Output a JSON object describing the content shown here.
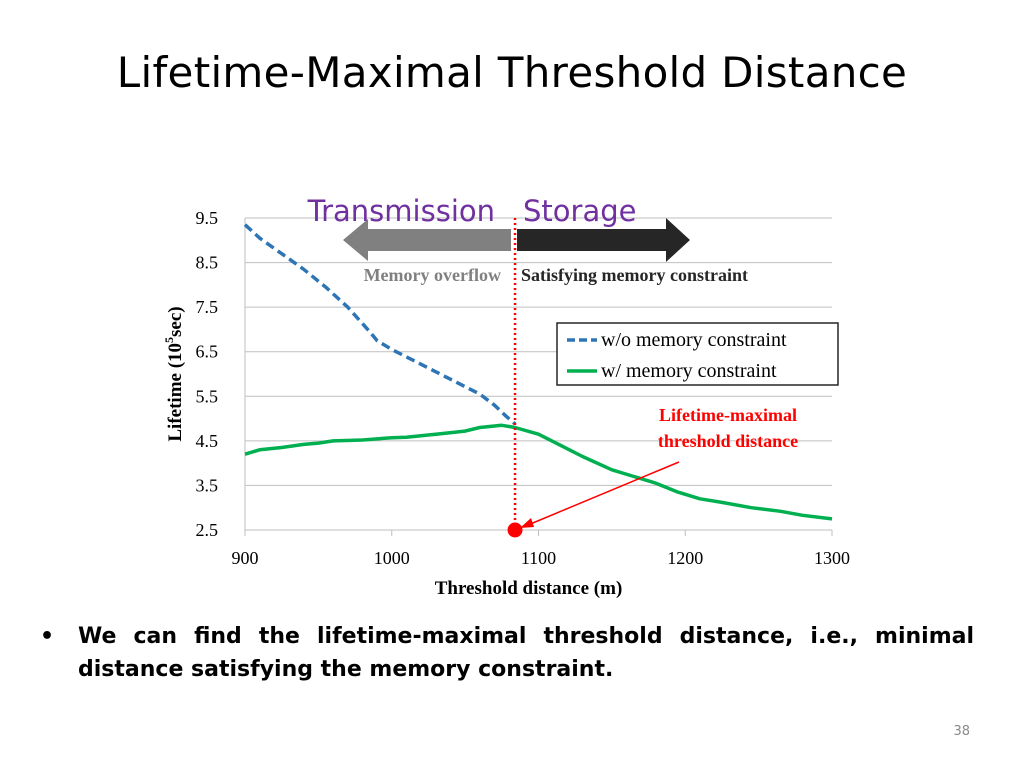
{
  "slide": {
    "title": "Lifetime-Maximal Threshold Distance",
    "bullet_marker": "•",
    "bullet_text": "We can find the lifetime-maximal threshold distance, i.e., minimal distance satisfying the memory constraint.",
    "page_number": "38"
  },
  "chart_data": {
    "type": "line",
    "xlabel": "Threshold distance (m)",
    "ylabel_main": "Lifetime (10",
    "ylabel_sup": "5",
    "ylabel_tail": "sec)",
    "xlim": [
      900,
      1300
    ],
    "ylim": [
      2.5,
      9.5
    ],
    "x_ticks": [
      "900",
      "1000",
      "1100",
      "1200",
      "1300"
    ],
    "y_ticks": [
      "9.5",
      "8.5",
      "7.5",
      "6.5",
      "5.5",
      "4.5",
      "3.5",
      "2.5"
    ],
    "grid": true,
    "legend_position": "right, middle",
    "series": [
      {
        "name": "w/o memory constraint",
        "color": "#2E75B6",
        "style": "dashed",
        "points": [
          [
            900,
            9.35
          ],
          [
            910,
            9.05
          ],
          [
            925,
            8.7
          ],
          [
            940,
            8.35
          ],
          [
            955,
            7.95
          ],
          [
            970,
            7.5
          ],
          [
            985,
            6.95
          ],
          [
            990,
            6.75
          ],
          [
            1000,
            6.55
          ],
          [
            1015,
            6.3
          ],
          [
            1030,
            6.05
          ],
          [
            1045,
            5.8
          ],
          [
            1060,
            5.55
          ],
          [
            1070,
            5.3
          ],
          [
            1078,
            5.05
          ],
          [
            1084,
            4.88
          ]
        ]
      },
      {
        "name": "w/ memory constraint",
        "color": "#00B050",
        "style": "solid",
        "points": [
          [
            900,
            4.2
          ],
          [
            910,
            4.3
          ],
          [
            925,
            4.35
          ],
          [
            940,
            4.42
          ],
          [
            950,
            4.45
          ],
          [
            960,
            4.5
          ],
          [
            980,
            4.52
          ],
          [
            1000,
            4.57
          ],
          [
            1010,
            4.58
          ],
          [
            1030,
            4.65
          ],
          [
            1050,
            4.72
          ],
          [
            1060,
            4.8
          ],
          [
            1075,
            4.85
          ],
          [
            1084,
            4.8
          ],
          [
            1100,
            4.65
          ],
          [
            1115,
            4.4
          ],
          [
            1130,
            4.15
          ],
          [
            1150,
            3.85
          ],
          [
            1165,
            3.7
          ],
          [
            1180,
            3.55
          ],
          [
            1195,
            3.35
          ],
          [
            1210,
            3.2
          ],
          [
            1225,
            3.12
          ],
          [
            1245,
            3.0
          ],
          [
            1265,
            2.92
          ],
          [
            1280,
            2.83
          ],
          [
            1300,
            2.75
          ]
        ]
      }
    ],
    "threshold": {
      "x": 1084,
      "y": 2.5,
      "label_line1": "Lifetime-maximal",
      "label_line2": "threshold distance",
      "color": "#FF0000"
    },
    "regions": {
      "left_title": "Transmission",
      "right_title": "Storage",
      "left_label": "Memory overflow",
      "right_label": "Satisfying memory constraint",
      "title_color": "#7030A0",
      "left_arrow_color": "#808080",
      "right_arrow_color": "#262626"
    }
  }
}
